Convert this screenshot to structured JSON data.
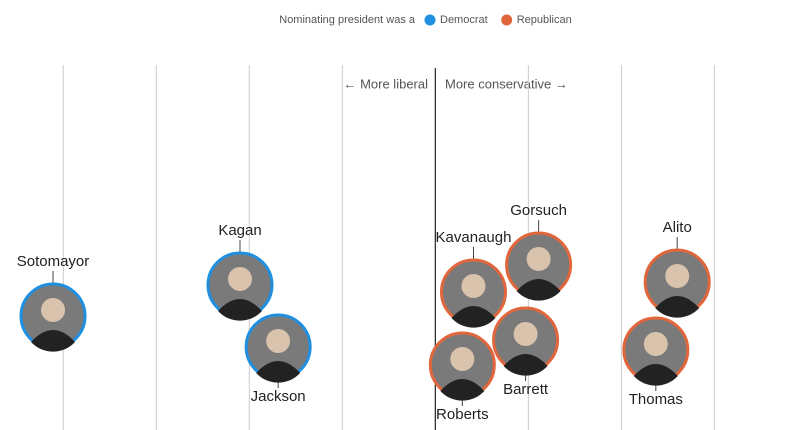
{
  "chart_data": {
    "type": "scatter",
    "legend_title": "Nominating president was a",
    "annotations": [
      "← More liberal",
      "More conservative →"
    ],
    "series": [
      {
        "name": "Democrat",
        "color": "#1f8fdf",
        "labels": [
          "Sotomayor",
          "Kagan",
          "Jackson"
        ],
        "values": [
          -4.11,
          -2.1,
          -1.69
        ]
      },
      {
        "name": "Republican",
        "color": "#e2663c",
        "labels": [
          "Kavanaugh",
          "Roberts",
          "Gorsuch",
          "Barrett",
          "Alito",
          "Thomas"
        ],
        "values": [
          0.41,
          0.29,
          1.11,
          0.97,
          2.6,
          2.37
        ]
      }
    ],
    "xlim": [
      -4.68,
      3.92
    ],
    "xticks": [
      -4,
      -3,
      -2,
      -1,
      0,
      1,
      2,
      3
    ],
    "grid": true
  }
}
